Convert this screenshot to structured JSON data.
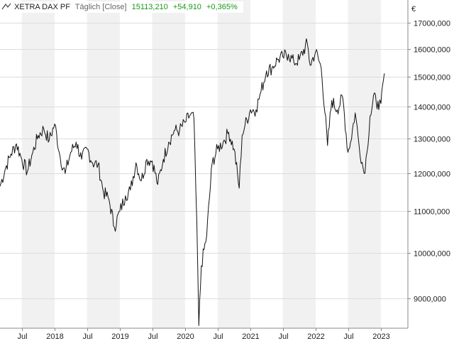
{
  "legend": {
    "icon": "line-chart-icon",
    "name": "XETRA DAX PF",
    "mode": "Täglich [Close]",
    "last": "15113,210",
    "change": "+54,910",
    "change_pct": "+0,365%"
  },
  "currency": "€",
  "colors": {
    "line": "#111111",
    "shade": "#f1f1f1",
    "grid": "#dcdcdc",
    "axis": "#888888",
    "positive": "#1a9a1a"
  },
  "chart_data": {
    "type": "line",
    "title": "XETRA DAX PF",
    "xlabel": "",
    "ylabel": "",
    "y_scale": "log",
    "ylim": [
      8400,
      17900
    ],
    "xlim": [
      "2017-03-01",
      "2023-06-01"
    ],
    "grid": true,
    "y_ticks": [
      {
        "value": 9000,
        "label": "9000,000"
      },
      {
        "value": 10000,
        "label": "10000,000"
      },
      {
        "value": 11000,
        "label": "11000,000"
      },
      {
        "value": 12000,
        "label": "12000,000"
      },
      {
        "value": 13000,
        "label": "13000,000"
      },
      {
        "value": 14000,
        "label": "14000,000"
      },
      {
        "value": 15000,
        "label": "15000,000"
      },
      {
        "value": 16000,
        "label": "16000,000"
      },
      {
        "value": 17000,
        "label": "17000,000"
      }
    ],
    "x_ticks": [
      {
        "date": "2017-07-01",
        "label": "Jul"
      },
      {
        "date": "2018-01-01",
        "label": "2018"
      },
      {
        "date": "2018-07-01",
        "label": "Jul"
      },
      {
        "date": "2019-01-01",
        "label": "2019"
      },
      {
        "date": "2019-07-01",
        "label": "Jul"
      },
      {
        "date": "2020-01-01",
        "label": "2020"
      },
      {
        "date": "2020-07-01",
        "label": "Jul"
      },
      {
        "date": "2021-01-01",
        "label": "2021"
      },
      {
        "date": "2021-07-01",
        "label": "Jul"
      },
      {
        "date": "2022-01-01",
        "label": "2022"
      },
      {
        "date": "2022-07-01",
        "label": "Jul"
      },
      {
        "date": "2023-01-01",
        "label": "2023"
      }
    ],
    "series": [
      {
        "name": "XETRA DAX PF",
        "points": [
          [
            "2017-03-01",
            11650
          ],
          [
            "2017-04-01",
            12150
          ],
          [
            "2017-05-01",
            12550
          ],
          [
            "2017-06-01",
            12850
          ],
          [
            "2017-07-01",
            12400
          ],
          [
            "2017-08-01",
            12050
          ],
          [
            "2017-09-01",
            12600
          ],
          [
            "2017-10-01",
            13100
          ],
          [
            "2017-11-01",
            13300
          ],
          [
            "2017-12-01",
            12950
          ],
          [
            "2018-01-01",
            13450
          ],
          [
            "2018-02-01",
            12450
          ],
          [
            "2018-03-01",
            12000
          ],
          [
            "2018-04-01",
            12600
          ],
          [
            "2018-05-01",
            12900
          ],
          [
            "2018-06-01",
            12400
          ],
          [
            "2018-07-01",
            12700
          ],
          [
            "2018-08-01",
            12300
          ],
          [
            "2018-09-01",
            12250
          ],
          [
            "2018-10-01",
            11500
          ],
          [
            "2018-11-01",
            11300
          ],
          [
            "2018-12-01",
            10600
          ],
          [
            "2019-01-01",
            11000
          ],
          [
            "2019-02-01",
            11400
          ],
          [
            "2019-03-01",
            11550
          ],
          [
            "2019-04-01",
            12300
          ],
          [
            "2019-05-01",
            11800
          ],
          [
            "2019-06-01",
            12400
          ],
          [
            "2019-07-01",
            12350
          ],
          [
            "2019-08-01",
            11700
          ],
          [
            "2019-09-01",
            12400
          ],
          [
            "2019-10-01",
            12900
          ],
          [
            "2019-11-01",
            13250
          ],
          [
            "2019-12-01",
            13250
          ],
          [
            "2020-01-01",
            13500
          ],
          [
            "2020-02-01",
            13750
          ],
          [
            "2020-02-20",
            13600
          ],
          [
            "2020-03-01",
            11600
          ],
          [
            "2020-03-18",
            8450
          ],
          [
            "2020-04-01",
            9700
          ],
          [
            "2020-05-01",
            10400
          ],
          [
            "2020-06-01",
            12300
          ],
          [
            "2020-07-01",
            12700
          ],
          [
            "2020-08-01",
            12900
          ],
          [
            "2020-09-01",
            13200
          ],
          [
            "2020-10-01",
            12700
          ],
          [
            "2020-10-30",
            11600
          ],
          [
            "2020-11-15",
            13100
          ],
          [
            "2020-12-01",
            13400
          ],
          [
            "2021-01-01",
            13900
          ],
          [
            "2021-02-01",
            13900
          ],
          [
            "2021-03-01",
            14500
          ],
          [
            "2021-04-01",
            15200
          ],
          [
            "2021-05-01",
            15300
          ],
          [
            "2021-06-01",
            15600
          ],
          [
            "2021-07-01",
            15700
          ],
          [
            "2021-08-01",
            15800
          ],
          [
            "2021-09-01",
            15500
          ],
          [
            "2021-10-01",
            15600
          ],
          [
            "2021-11-15",
            16200
          ],
          [
            "2021-12-01",
            15400
          ],
          [
            "2022-01-01",
            15900
          ],
          [
            "2022-02-01",
            15300
          ],
          [
            "2022-03-08",
            12800
          ],
          [
            "2022-04-01",
            14200
          ],
          [
            "2022-05-01",
            13900
          ],
          [
            "2022-06-01",
            14300
          ],
          [
            "2022-06-30",
            12600
          ],
          [
            "2022-07-15",
            12900
          ],
          [
            "2022-08-10",
            13800
          ],
          [
            "2022-09-01",
            12800
          ],
          [
            "2022-09-29",
            12000
          ],
          [
            "2022-10-15",
            12600
          ],
          [
            "2022-11-01",
            13700
          ],
          [
            "2022-12-01",
            14400
          ],
          [
            "2022-12-20",
            13900
          ],
          [
            "2023-01-01",
            14100
          ],
          [
            "2023-01-20",
            15113
          ]
        ]
      }
    ]
  }
}
